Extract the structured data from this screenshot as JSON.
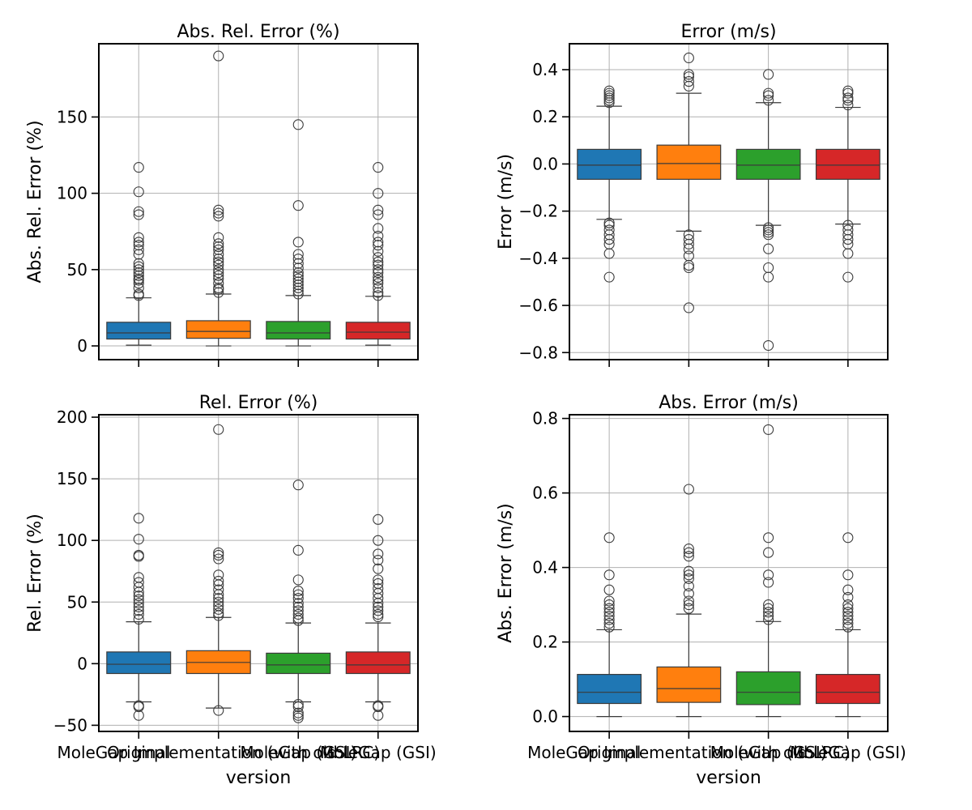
{
  "colors": {
    "series": [
      "#1f77b4",
      "#ff7f0e",
      "#2ca02c",
      "#d62728"
    ],
    "grid": "#b0b0b0",
    "median": "#3a3a3a"
  },
  "chart_data": [
    {
      "type": "box",
      "title": "Abs. Rel. Error (%)",
      "xlabel": "",
      "ylabel": "Abs. Rel. Error (%)",
      "ylim": [
        -9,
        198
      ],
      "yticks": [
        0,
        50,
        100,
        150
      ],
      "ytick_labels": [
        "0",
        "50",
        "100",
        "150"
      ],
      "show_xticklabels": false,
      "grid": true,
      "categories": [
        "Original",
        "MoleGap Implementation (with old LRC)",
        "MoleGap (GSI)",
        "MoleGap (GSI) 2"
      ],
      "boxes": [
        {
          "whislo": 0.5,
          "q1": 4.5,
          "med": 8.5,
          "q3": 15.5,
          "whishi": 31.5,
          "fliers": [
            33,
            34,
            38,
            41,
            43,
            44,
            46,
            48,
            50,
            52,
            54,
            60,
            63,
            66,
            68,
            71,
            86,
            88,
            101,
            117
          ]
        },
        {
          "whislo": 0,
          "q1": 5,
          "med": 9.5,
          "q3": 16.5,
          "whishi": 34,
          "fliers": [
            35,
            37,
            38,
            41,
            44,
            46,
            48,
            50,
            53,
            55,
            57,
            60,
            63,
            65,
            67,
            71,
            85,
            87,
            89,
            190
          ]
        },
        {
          "whislo": 0,
          "q1": 4.5,
          "med": 8.5,
          "q3": 16,
          "whishi": 33,
          "fliers": [
            34,
            36,
            38,
            40,
            42,
            44,
            46,
            48,
            51,
            54,
            57,
            60,
            68,
            92,
            145
          ]
        },
        {
          "whislo": 0.5,
          "q1": 4.5,
          "med": 9,
          "q3": 15.5,
          "whishi": 32.5,
          "fliers": [
            33,
            35,
            38,
            41,
            43,
            45,
            48,
            50,
            53,
            55,
            58,
            62,
            66,
            68,
            72,
            77,
            86,
            89,
            100,
            117
          ]
        }
      ]
    },
    {
      "type": "box",
      "title": "Error (m/s)",
      "xlabel": "",
      "ylabel": "Error (m/s)",
      "ylim": [
        -0.83,
        0.51
      ],
      "yticks": [
        -0.8,
        -0.6,
        -0.4,
        -0.2,
        0.0,
        0.2,
        0.4
      ],
      "ytick_labels": [
        "−0.8",
        "−0.6",
        "−0.4",
        "−0.2",
        "0.0",
        "0.2",
        "0.4"
      ],
      "show_xticklabels": false,
      "grid": true,
      "categories": [
        "Original",
        "MoleGap Implementation (with old LRC)",
        "MoleGap (GSI)",
        "MoleGap (GSI) 2"
      ],
      "boxes": [
        {
          "whislo": -0.235,
          "q1": -0.065,
          "med": -0.005,
          "q3": 0.062,
          "whishi": 0.245,
          "fliers": [
            0.26,
            0.27,
            0.28,
            0.29,
            0.3,
            0.31,
            -0.25,
            -0.26,
            -0.28,
            -0.3,
            -0.32,
            -0.34,
            -0.38,
            -0.48
          ]
        },
        {
          "whislo": -0.285,
          "q1": -0.065,
          "med": 0.002,
          "q3": 0.08,
          "whishi": 0.3,
          "fliers": [
            0.33,
            0.35,
            0.37,
            0.38,
            0.45,
            -0.3,
            -0.32,
            -0.34,
            -0.36,
            -0.39,
            -0.43,
            -0.44,
            -0.61
          ]
        },
        {
          "whislo": -0.26,
          "q1": -0.065,
          "med": -0.005,
          "q3": 0.062,
          "whishi": 0.26,
          "fliers": [
            0.27,
            0.29,
            0.3,
            0.38,
            -0.27,
            -0.28,
            -0.29,
            -0.3,
            -0.36,
            -0.44,
            -0.48,
            -0.77
          ]
        },
        {
          "whislo": -0.255,
          "q1": -0.065,
          "med": -0.005,
          "q3": 0.062,
          "whishi": 0.24,
          "fliers": [
            0.25,
            0.27,
            0.28,
            0.3,
            0.31,
            -0.26,
            -0.28,
            -0.3,
            -0.32,
            -0.34,
            -0.38,
            -0.48
          ]
        }
      ]
    },
    {
      "type": "box",
      "title": "Rel. Error (%)",
      "xlabel": "version",
      "ylabel": "Rel. Error (%)",
      "ylim": [
        -55,
        202
      ],
      "yticks": [
        -50,
        0,
        50,
        100,
        150,
        200
      ],
      "ytick_labels": [
        "−50",
        "0",
        "50",
        "100",
        "150",
        "200"
      ],
      "show_xticklabels": true,
      "grid": true,
      "categories": [
        "Original",
        "MoleGap Implementation (with old LRC)",
        "MoleGap (GSI)",
        "MoleGap (GSI)"
      ],
      "boxes": [
        {
          "whislo": -31,
          "q1": -8,
          "med": -0.5,
          "q3": 9.5,
          "whishi": 34,
          "fliers": [
            36,
            40,
            43,
            46,
            49,
            52,
            55,
            58,
            62,
            66,
            70,
            87,
            88,
            101,
            118,
            -34,
            -35,
            -42
          ]
        },
        {
          "whislo": -36,
          "q1": -8,
          "med": 1,
          "q3": 10.5,
          "whishi": 37.5,
          "fliers": [
            39,
            41,
            44,
            47,
            50,
            53,
            56,
            60,
            64,
            67,
            72,
            85,
            88,
            90,
            190,
            -38
          ]
        },
        {
          "whislo": -31,
          "q1": -8,
          "med": -1,
          "q3": 8.5,
          "whishi": 33,
          "fliers": [
            35,
            37,
            40,
            43,
            46,
            49,
            53,
            56,
            59,
            68,
            92,
            145,
            -33,
            -35,
            -40,
            -42,
            -44
          ]
        },
        {
          "whislo": -31,
          "q1": -8,
          "med": -1,
          "q3": 9.5,
          "whishi": 33,
          "fliers": [
            38,
            40,
            43,
            46,
            49,
            53,
            57,
            61,
            65,
            68,
            77,
            84,
            89,
            100,
            117,
            -34,
            -35,
            -42
          ]
        }
      ]
    },
    {
      "type": "box",
      "title": "Abs. Error (m/s)",
      "xlabel": "version",
      "ylabel": "Abs. Error (m/s)",
      "ylim": [
        -0.04,
        0.81
      ],
      "yticks": [
        0.0,
        0.2,
        0.4,
        0.6,
        0.8
      ],
      "ytick_labels": [
        "0.0",
        "0.2",
        "0.4",
        "0.6",
        "0.8"
      ],
      "show_xticklabels": true,
      "grid": true,
      "categories": [
        "Original",
        "MoleGap Implementation (with old LRC)",
        "MoleGap (GSI)",
        "MoleGap (GSI)"
      ],
      "boxes": [
        {
          "whislo": 0,
          "q1": 0.035,
          "med": 0.065,
          "q3": 0.113,
          "whishi": 0.233,
          "fliers": [
            0.24,
            0.25,
            0.26,
            0.27,
            0.28,
            0.29,
            0.3,
            0.31,
            0.34,
            0.38,
            0.48
          ]
        },
        {
          "whislo": 0,
          "q1": 0.038,
          "med": 0.075,
          "q3": 0.133,
          "whishi": 0.275,
          "fliers": [
            0.29,
            0.3,
            0.31,
            0.33,
            0.35,
            0.37,
            0.38,
            0.39,
            0.43,
            0.44,
            0.45,
            0.61
          ]
        },
        {
          "whislo": 0,
          "q1": 0.032,
          "med": 0.065,
          "q3": 0.12,
          "whishi": 0.255,
          "fliers": [
            0.26,
            0.27,
            0.28,
            0.29,
            0.3,
            0.36,
            0.38,
            0.44,
            0.48,
            0.77
          ]
        },
        {
          "whislo": 0,
          "q1": 0.035,
          "med": 0.065,
          "q3": 0.113,
          "whishi": 0.233,
          "fliers": [
            0.24,
            0.25,
            0.26,
            0.27,
            0.28,
            0.29,
            0.3,
            0.32,
            0.34,
            0.38,
            0.48
          ]
        }
      ]
    }
  ]
}
